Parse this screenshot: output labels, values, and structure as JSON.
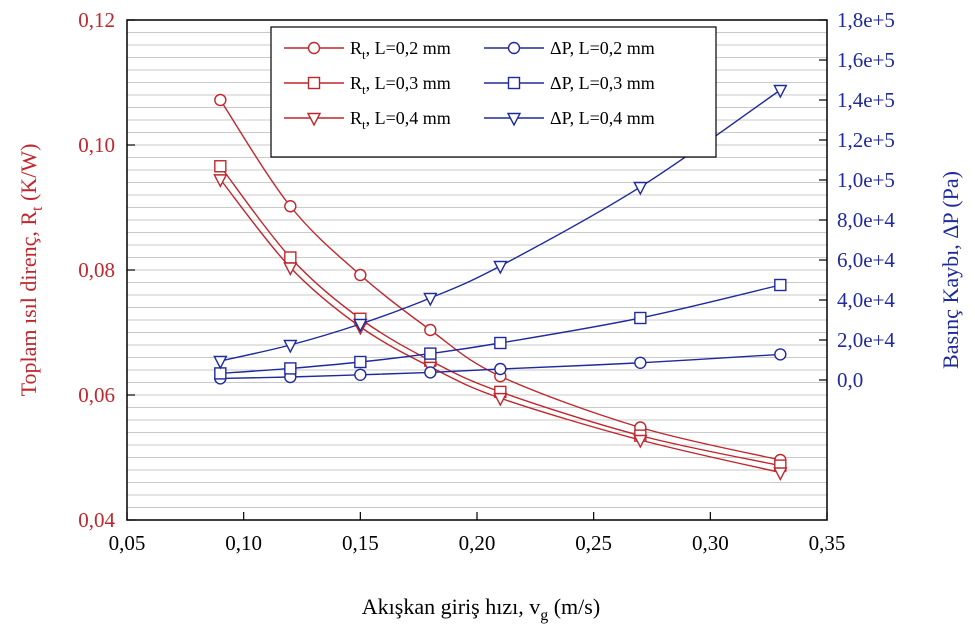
{
  "colors": {
    "rt": "#c0272d",
    "dp": "#1f2a9c",
    "grid": "#b8b8b8",
    "axis": "#000000"
  },
  "chart_data": {
    "type": "line",
    "x": [
      0.09,
      0.12,
      0.15,
      0.18,
      0.21,
      0.27,
      0.33
    ],
    "xlabel": {
      "main": "Akışkan giriş hızı, v",
      "sub": "g",
      "tail": " (m/s)"
    },
    "ylabel_left": {
      "main": "Toplam ısıl direnç, R",
      "sub": "t",
      "tail": "  (K/W)"
    },
    "ylabel_right": "Basınç Kaybı, ΔP (Pa)",
    "xlim": [
      0.05,
      0.35
    ],
    "ylim_left": [
      0.04,
      0.12
    ],
    "ylim_right": [
      -70000,
      180000
    ],
    "x_ticks": [
      "0,05",
      "0,10",
      "0,15",
      "0,20",
      "0,25",
      "0,30",
      "0,35"
    ],
    "x_tick_values": [
      0.05,
      0.1,
      0.15,
      0.2,
      0.25,
      0.3,
      0.35
    ],
    "y_left_ticks": [
      "0,04",
      "0,06",
      "0,08",
      "0,10",
      "0,12"
    ],
    "y_left_tick_values": [
      0.04,
      0.06,
      0.08,
      0.1,
      0.12
    ],
    "y_right_ticks": [
      "0,0",
      "2,0e+4",
      "4,0e+4",
      "6,0e+4",
      "8,0e+4",
      "1,0e+5",
      "1,2e+5",
      "1,4e+5",
      "1,6e+5",
      "1,8e+5"
    ],
    "y_right_tick_values": [
      0,
      20000,
      40000,
      60000,
      80000,
      100000,
      120000,
      140000,
      160000,
      180000
    ],
    "grid": "horizontal",
    "legend_position": "top-center",
    "series": [
      {
        "name": "L=0,2 mm",
        "prefix": "R",
        "sub": "t",
        "axis": "left",
        "marker": "circle",
        "values": [
          0.1072,
          0.0902,
          0.0792,
          0.0704,
          0.063,
          0.0548,
          0.0496
        ]
      },
      {
        "name": "L=0,3 mm",
        "prefix": "R",
        "sub": "t",
        "axis": "left",
        "marker": "square",
        "values": [
          0.0966,
          0.082,
          0.0722,
          0.0655,
          0.0605,
          0.0535,
          0.0487
        ]
      },
      {
        "name": "L=0,4 mm",
        "prefix": "R",
        "sub": "t",
        "axis": "left",
        "marker": "triangle",
        "values": [
          0.0945,
          0.0804,
          0.0709,
          0.0645,
          0.0595,
          0.0528,
          0.0476
        ]
      },
      {
        "name": "ΔP, L=0,2 mm",
        "axis": "right",
        "marker": "circle",
        "values": [
          800,
          1500,
          2600,
          3800,
          5500,
          8600,
          12800
        ]
      },
      {
        "name": "ΔP, L=0,3 mm",
        "axis": "right",
        "marker": "square",
        "values": [
          3300,
          5800,
          9000,
          13200,
          18500,
          31000,
          47500
        ]
      },
      {
        "name": "ΔP, L=0,4 mm",
        "axis": "right",
        "marker": "triangle",
        "values": [
          9500,
          17500,
          28000,
          41000,
          57000,
          96500,
          145000
        ]
      }
    ]
  }
}
